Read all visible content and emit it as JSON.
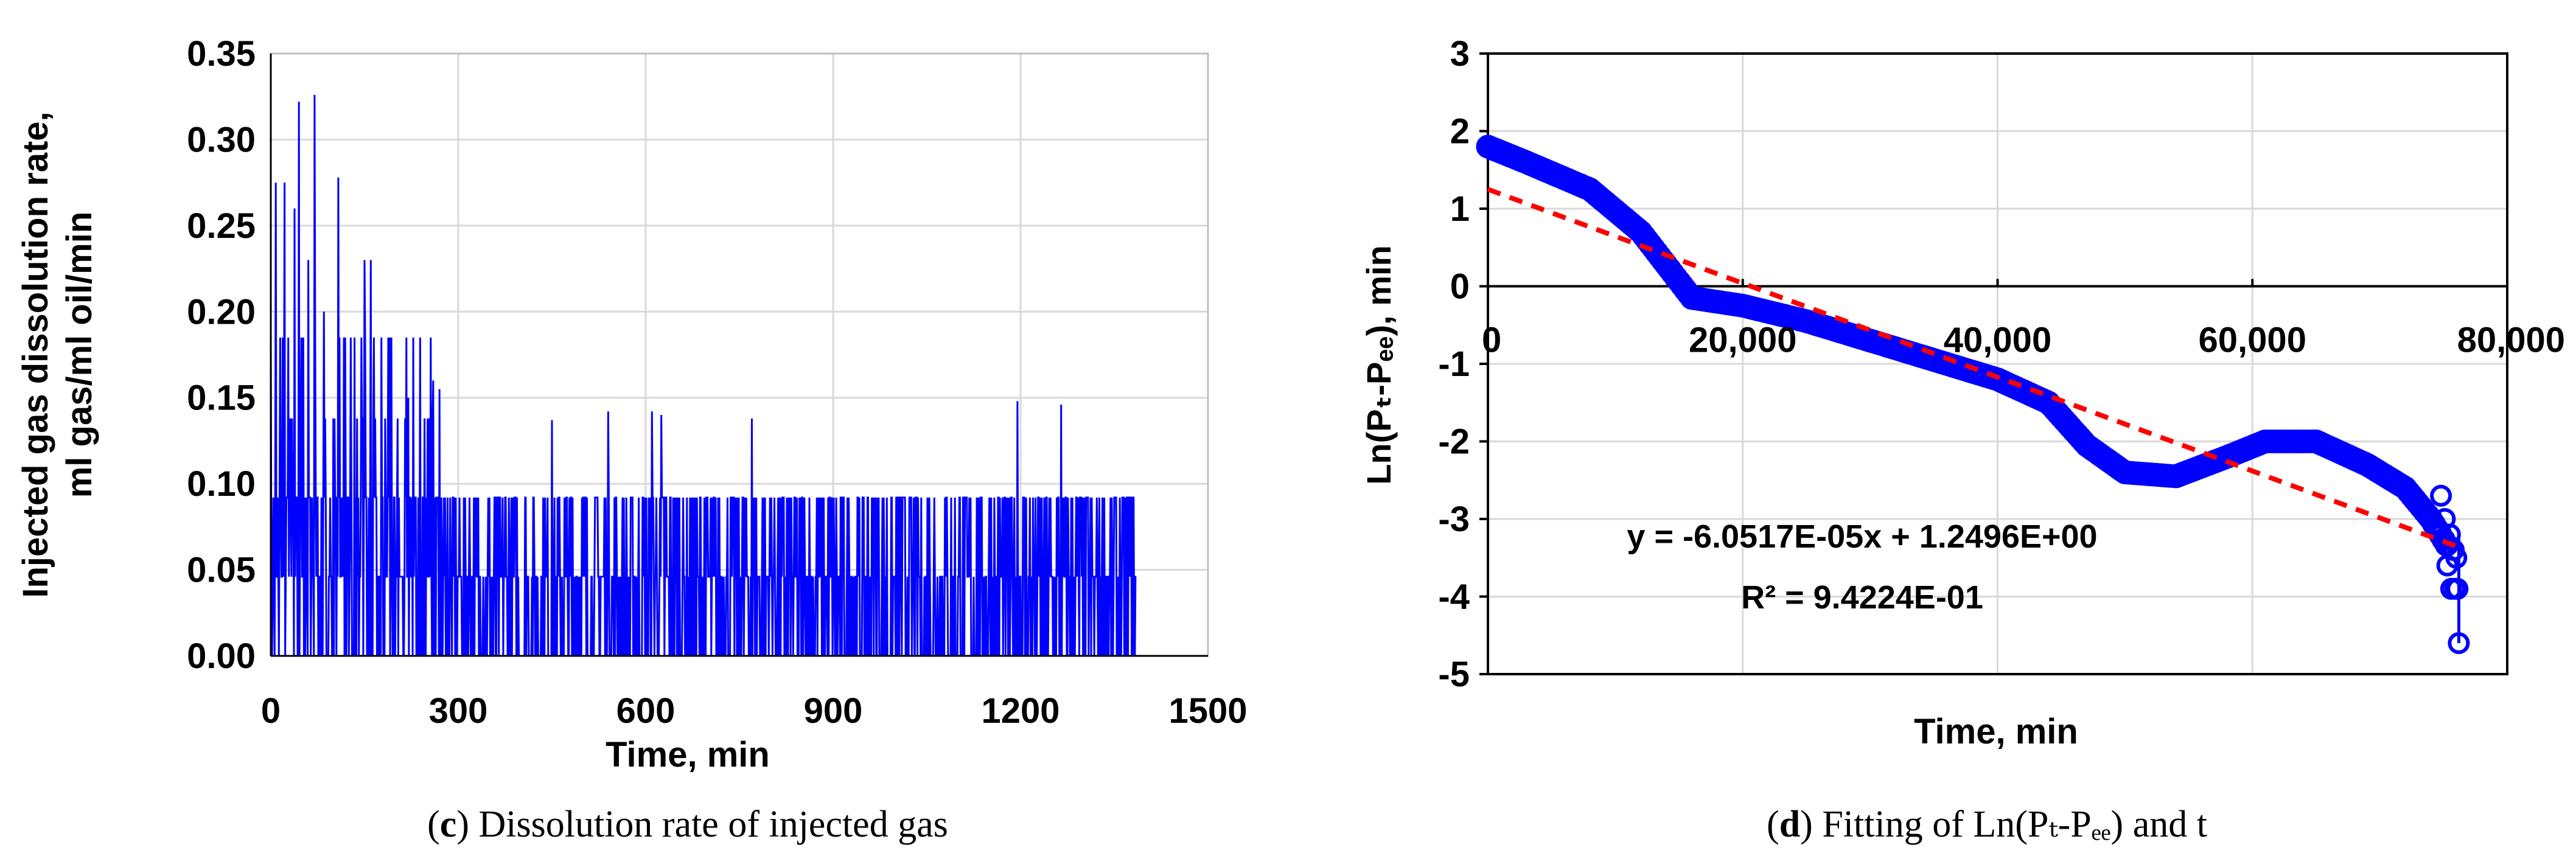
{
  "chart_data": [
    {
      "type": "line",
      "panel_letter": "c",
      "caption": "Dissolution rate of injected gas",
      "xlabel": "Time, min",
      "ylabel_line1": "Injected gas dissolution rate,",
      "ylabel_line2": "ml gas/ml oil/min",
      "xlim": [
        0,
        1500
      ],
      "ylim": [
        0,
        0.35
      ],
      "xticks": [
        0,
        300,
        600,
        900,
        1200,
        1500
      ],
      "xtick_labels": [
        "0",
        "300",
        "600",
        "900",
        "1200",
        "1500"
      ],
      "yticks": [
        0,
        0.05,
        0.1,
        0.15,
        0.2,
        0.25,
        0.3,
        0.35
      ],
      "ytick_labels": [
        "0.00",
        "0.05",
        "0.10",
        "0.15",
        "0.20",
        "0.25",
        "0.30",
        "0.35"
      ],
      "grid": true,
      "series_color": "#0000ff",
      "time_range": [
        0,
        1385
      ],
      "base_levels": [
        0,
        0.046,
        0.092
      ],
      "spikes": [
        {
          "x": 8,
          "y": 0.275
        },
        {
          "x": 22,
          "y": 0.275
        },
        {
          "x": 38,
          "y": 0.26
        },
        {
          "x": 45,
          "y": 0.322
        },
        {
          "x": 60,
          "y": 0.23
        },
        {
          "x": 70,
          "y": 0.326
        },
        {
          "x": 85,
          "y": 0.2
        },
        {
          "x": 108,
          "y": 0.278
        },
        {
          "x": 150,
          "y": 0.23
        },
        {
          "x": 160,
          "y": 0.23
        },
        {
          "x": 190,
          "y": 0.185
        },
        {
          "x": 220,
          "y": 0.15
        },
        {
          "x": 260,
          "y": 0.16
        },
        {
          "x": 270,
          "y": 0.155
        },
        {
          "x": 450,
          "y": 0.137
        },
        {
          "x": 540,
          "y": 0.142
        },
        {
          "x": 610,
          "y": 0.142
        },
        {
          "x": 625,
          "y": 0.14
        },
        {
          "x": 770,
          "y": 0.138
        },
        {
          "x": 1195,
          "y": 0.148
        },
        {
          "x": 1265,
          "y": 0.146
        }
      ]
    },
    {
      "type": "scatter",
      "panel_letter": "d",
      "caption": "Fitting of Ln(Pₜ-Pₑₑ) and t",
      "xlabel": "Time, min",
      "ylabel": "Ln(Pₜ-Pₑₑ), min",
      "xlim": [
        0,
        80000
      ],
      "ylim": [
        -5,
        3
      ],
      "xticks": [
        0,
        20000,
        40000,
        60000,
        80000
      ],
      "xtick_labels": [
        "0",
        "20,000",
        "40,000",
        "60,000",
        "80,000"
      ],
      "yticks": [
        -5,
        -4,
        -3,
        -2,
        -1,
        0,
        1,
        2,
        3
      ],
      "ytick_labels": [
        "-5",
        "-4",
        "-3",
        "-2",
        "-1",
        "0",
        "1",
        "2",
        "3"
      ],
      "grid": true,
      "series_color": "#0000ff",
      "fit_color": "#ff0000",
      "data_points": [
        {
          "x": 0,
          "y": 1.8
        },
        {
          "x": 3000,
          "y": 1.6
        },
        {
          "x": 8000,
          "y": 1.25
        },
        {
          "x": 12000,
          "y": 0.7
        },
        {
          "x": 16000,
          "y": -0.15
        },
        {
          "x": 20000,
          "y": -0.25
        },
        {
          "x": 25000,
          "y": -0.45
        },
        {
          "x": 30000,
          "y": -0.7
        },
        {
          "x": 35000,
          "y": -0.95
        },
        {
          "x": 40000,
          "y": -1.2
        },
        {
          "x": 44000,
          "y": -1.5
        },
        {
          "x": 47000,
          "y": -2.05
        },
        {
          "x": 50000,
          "y": -2.4
        },
        {
          "x": 54000,
          "y": -2.45
        },
        {
          "x": 58000,
          "y": -2.2
        },
        {
          "x": 61000,
          "y": -2.0
        },
        {
          "x": 65000,
          "y": -2.0
        },
        {
          "x": 69000,
          "y": -2.3
        },
        {
          "x": 72000,
          "y": -2.6
        },
        {
          "x": 74000,
          "y": -3.0
        },
        {
          "x": 75500,
          "y": -3.4
        },
        {
          "x": 76000,
          "y": -3.9
        },
        {
          "x": 76200,
          "y": -4.6
        }
      ],
      "fit": {
        "slope": -6.0517e-05,
        "intercept": 1.2496,
        "x_range": [
          0,
          76000
        ]
      },
      "equation_text": "y = -6.0517E-05x + 1.2496E+00",
      "r2_text": "R² = 9.4224E-01"
    }
  ]
}
